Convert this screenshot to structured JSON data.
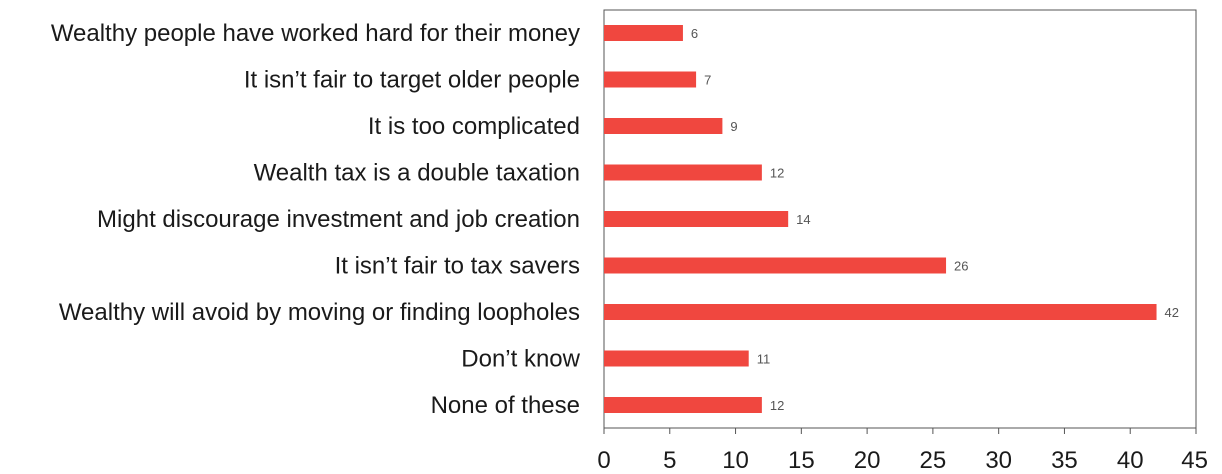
{
  "chart_data": {
    "type": "bar",
    "orientation": "horizontal",
    "categories": [
      "Wealthy people have worked hard for their money",
      "It isn’t fair to target older people",
      "It is too complicated ",
      "Wealth tax is a double taxation",
      "Might discourage investment and job creation",
      "It isn’t fair to tax savers",
      "Wealthy will avoid by moving or finding loopholes",
      "Don’t know",
      "None of these"
    ],
    "values": [
      6,
      7,
      9,
      12,
      14,
      26,
      42,
      11,
      12
    ],
    "xlim": [
      0,
      45
    ],
    "xticks": [
      0,
      5,
      10,
      15,
      20,
      25,
      30,
      35,
      40,
      45
    ],
    "grid": false,
    "bar_color": "#f0473f",
    "frame_color": "#555555"
  }
}
